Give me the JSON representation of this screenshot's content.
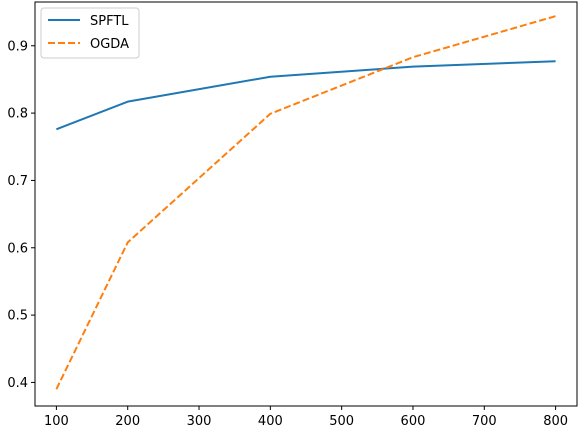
{
  "chart_data": {
    "type": "line",
    "title": "",
    "xlabel": "",
    "ylabel": "",
    "xlim": [
      70,
      830
    ],
    "ylim": [
      0.365,
      0.965
    ],
    "xticks": [
      100,
      200,
      300,
      400,
      500,
      600,
      700,
      800
    ],
    "yticks": [
      0.4,
      0.5,
      0.6,
      0.7,
      0.8,
      0.9
    ],
    "xtick_labels": [
      "100",
      "200",
      "300",
      "400",
      "500",
      "600",
      "700",
      "800"
    ],
    "ytick_labels": [
      "0.4",
      "0.5",
      "0.6",
      "0.7",
      "0.8",
      "0.9"
    ],
    "grid": false,
    "legend_position": "top-left",
    "series": [
      {
        "name": "SPFTL",
        "color": "#1f77b4",
        "line_style": "solid",
        "x": [
          100,
          200,
          400,
          600,
          800
        ],
        "y": [
          0.776,
          0.817,
          0.854,
          0.869,
          0.877
        ]
      },
      {
        "name": "OGDA",
        "color": "#ff7f0e",
        "line_style": "dashed",
        "x": [
          100,
          200,
          400,
          600,
          800
        ],
        "y": [
          0.39,
          0.608,
          0.799,
          0.883,
          0.944
        ]
      }
    ]
  }
}
